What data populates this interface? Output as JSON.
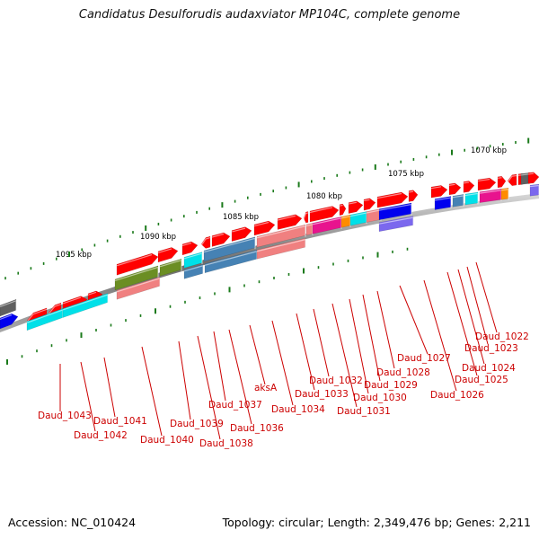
{
  "title": "Candidatus Desulforudis audaxviator MP104C, complete genome",
  "footer": {
    "accession": "Accession: NC_010424",
    "summary": "Topology: circular; Length: 2,349,476 bp; Genes: 2,211"
  },
  "ruler_labels": [
    "1095 kbp",
    "1090 kbp",
    "1085 kbp",
    "1080 kbp",
    "1075 kbp",
    "1070 kbp"
  ],
  "gene_labels": [
    "Daud_1043",
    "Daud_1042",
    "Daud_1041",
    "Daud_1040",
    "Daud_1039",
    "Daud_1038",
    "Daud_1037",
    "Daud_1036",
    "aksA",
    "Daud_1034",
    "Daud_1033",
    "Daud_1032",
    "Daud_1031",
    "Daud_1030",
    "Daud_1029",
    "Daud_1028",
    "Daud_1027",
    "Daud_1026",
    "Daud_1025",
    "Daud_1024",
    "Daud_1023",
    "Daud_1022"
  ],
  "colors": {
    "backbone": "#8a8a8a",
    "tick": "#1a7a1a",
    "label": "#cc0000",
    "gene_red": "#ff0000",
    "gene_cyan": "#00e0e8",
    "gene_olive": "#6b8e23",
    "gene_salmon": "#f08080",
    "gene_steel": "#4682b4",
    "gene_magenta": "#e8138e",
    "gene_orange": "#ff8c00",
    "gene_blue": "#0000ee",
    "gene_slate": "#7b68ee",
    "gene_gray": "#606060"
  }
}
